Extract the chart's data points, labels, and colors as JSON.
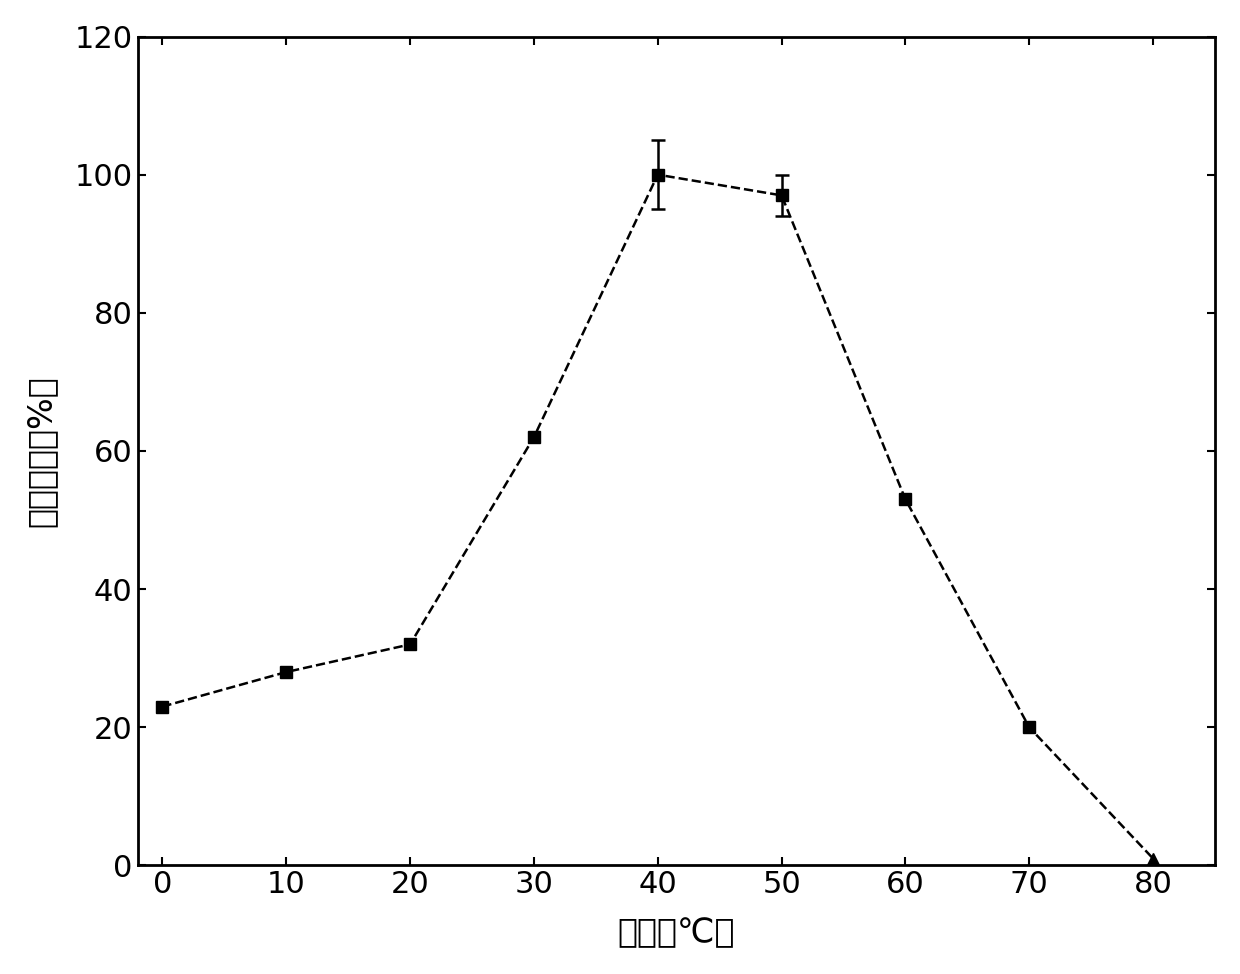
{
  "x": [
    0,
    10,
    20,
    30,
    40,
    50,
    60,
    70,
    80
  ],
  "y": [
    23,
    28,
    32,
    62,
    100,
    97,
    53,
    20,
    1
  ],
  "yerr": [
    0,
    0,
    0,
    0,
    5,
    3,
    0,
    0,
    0
  ],
  "markers": [
    "s",
    "s",
    "s",
    "s",
    "s",
    "s",
    "s",
    "s",
    "^"
  ],
  "xlabel": "温度（℃）",
  "ylabel": "相对活性（%）",
  "xlim": [
    -2,
    85
  ],
  "ylim": [
    0,
    120
  ],
  "xticks": [
    0,
    10,
    20,
    30,
    40,
    50,
    60,
    70,
    80
  ],
  "yticks": [
    0,
    20,
    40,
    60,
    80,
    100,
    120
  ],
  "line_color": "#000000",
  "marker_color": "#000000",
  "marker_size": 9,
  "linewidth": 1.8,
  "linestyle": "--",
  "background_color": "#ffffff",
  "xlabel_fontsize": 24,
  "ylabel_fontsize": 24,
  "tick_fontsize": 22,
  "capsize": 5
}
